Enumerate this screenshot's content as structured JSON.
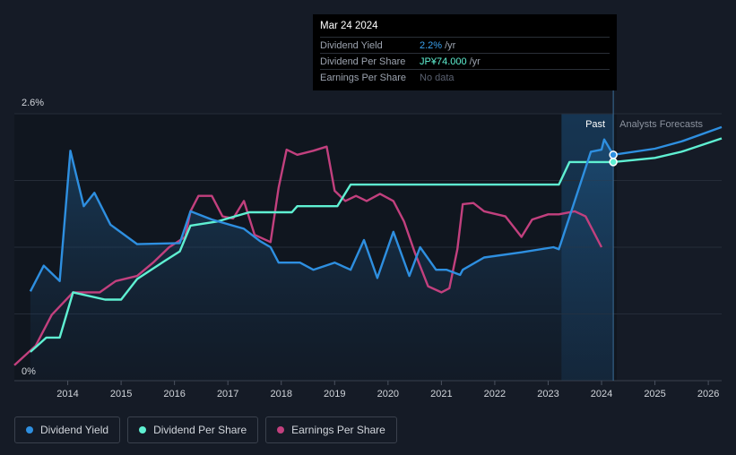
{
  "chart_data": {
    "type": "line",
    "y_axis": {
      "top_label": "2.6%",
      "bottom_label": "0%",
      "min": 0,
      "max": 2.6
    },
    "x_ticks": [
      "2014",
      "2015",
      "2016",
      "2017",
      "2018",
      "2019",
      "2020",
      "2021",
      "2022",
      "2023",
      "2024",
      "2025",
      "2026"
    ],
    "region_labels": {
      "past": "Past",
      "forecast": "Analysts Forecasts"
    },
    "series": [
      {
        "name": "Dividend Yield",
        "color": "#2e8fe0",
        "unit": "%",
        "points": [
          [
            2013.3,
            0.87
          ],
          [
            2013.55,
            1.12
          ],
          [
            2013.85,
            0.97
          ],
          [
            2014.05,
            2.24
          ],
          [
            2014.3,
            1.7
          ],
          [
            2014.5,
            1.83
          ],
          [
            2014.8,
            1.52
          ],
          [
            2015.3,
            1.33
          ],
          [
            2016.1,
            1.34
          ],
          [
            2016.3,
            1.65
          ],
          [
            2016.7,
            1.57
          ],
          [
            2017.3,
            1.48
          ],
          [
            2017.6,
            1.36
          ],
          [
            2017.8,
            1.3
          ],
          [
            2017.95,
            1.15
          ],
          [
            2018.35,
            1.15
          ],
          [
            2018.6,
            1.08
          ],
          [
            2019.0,
            1.15
          ],
          [
            2019.3,
            1.08
          ],
          [
            2019.55,
            1.37
          ],
          [
            2019.8,
            1.0
          ],
          [
            2020.1,
            1.45
          ],
          [
            2020.4,
            1.02
          ],
          [
            2020.6,
            1.3
          ],
          [
            2020.9,
            1.08
          ],
          [
            2021.1,
            1.08
          ],
          [
            2021.35,
            1.03
          ],
          [
            2021.4,
            1.08
          ],
          [
            2021.8,
            1.2
          ],
          [
            2022.5,
            1.25
          ],
          [
            2023.1,
            1.3
          ],
          [
            2023.2,
            1.28
          ],
          [
            2023.8,
            2.23
          ],
          [
            2024.0,
            2.25
          ],
          [
            2024.05,
            2.35
          ],
          [
            2024.22,
            2.2
          ]
        ]
      },
      {
        "name": "Dividend Per Share",
        "color": "#5ff0d2",
        "unit": "JP¥",
        "points": [
          [
            2013.3,
            0.28
          ],
          [
            2013.6,
            0.42
          ],
          [
            2013.85,
            0.42
          ],
          [
            2014.1,
            0.86
          ],
          [
            2014.7,
            0.79
          ],
          [
            2015.0,
            0.79
          ],
          [
            2015.3,
            0.99
          ],
          [
            2015.8,
            1.16
          ],
          [
            2016.1,
            1.26
          ],
          [
            2016.3,
            1.51
          ],
          [
            2016.8,
            1.55
          ],
          [
            2017.4,
            1.64
          ],
          [
            2018.2,
            1.64
          ],
          [
            2018.3,
            1.7
          ],
          [
            2019.05,
            1.7
          ],
          [
            2019.3,
            1.91
          ],
          [
            2023.2,
            1.91
          ],
          [
            2023.4,
            2.13
          ],
          [
            2024.22,
            2.13
          ]
        ]
      },
      {
        "name": "Earnings Per Share",
        "color": "#c2407e",
        "unit": "JP¥",
        "points": [
          [
            2013.0,
            0.15
          ],
          [
            2013.4,
            0.34
          ],
          [
            2013.7,
            0.64
          ],
          [
            2014.1,
            0.86
          ],
          [
            2014.6,
            0.86
          ],
          [
            2014.9,
            0.97
          ],
          [
            2015.3,
            1.02
          ],
          [
            2015.6,
            1.15
          ],
          [
            2015.9,
            1.3
          ],
          [
            2016.2,
            1.4
          ],
          [
            2016.3,
            1.65
          ],
          [
            2016.45,
            1.8
          ],
          [
            2016.7,
            1.8
          ],
          [
            2016.9,
            1.6
          ],
          [
            2017.1,
            1.58
          ],
          [
            2017.3,
            1.75
          ],
          [
            2017.5,
            1.42
          ],
          [
            2017.8,
            1.35
          ],
          [
            2017.95,
            1.88
          ],
          [
            2018.1,
            2.25
          ],
          [
            2018.3,
            2.2
          ],
          [
            2018.6,
            2.24
          ],
          [
            2018.85,
            2.28
          ],
          [
            2019.0,
            1.85
          ],
          [
            2019.2,
            1.75
          ],
          [
            2019.4,
            1.8
          ],
          [
            2019.6,
            1.75
          ],
          [
            2019.85,
            1.82
          ],
          [
            2020.1,
            1.75
          ],
          [
            2020.3,
            1.55
          ],
          [
            2020.5,
            1.25
          ],
          [
            2020.75,
            0.92
          ],
          [
            2021.0,
            0.86
          ],
          [
            2021.15,
            0.9
          ],
          [
            2021.3,
            1.28
          ],
          [
            2021.4,
            1.72
          ],
          [
            2021.6,
            1.73
          ],
          [
            2021.8,
            1.65
          ],
          [
            2022.2,
            1.6
          ],
          [
            2022.5,
            1.4
          ],
          [
            2022.7,
            1.57
          ],
          [
            2023.0,
            1.62
          ],
          [
            2023.2,
            1.62
          ],
          [
            2023.5,
            1.65
          ],
          [
            2023.7,
            1.6
          ],
          [
            2024.0,
            1.3
          ]
        ]
      }
    ],
    "forecast": [
      {
        "series": "Dividend Yield",
        "points": [
          [
            2024.22,
            2.2
          ],
          [
            2025.0,
            2.26
          ],
          [
            2025.5,
            2.33
          ],
          [
            2026.25,
            2.47
          ]
        ]
      },
      {
        "series": "Dividend Per Share",
        "points": [
          [
            2024.22,
            2.13
          ],
          [
            2025.0,
            2.17
          ],
          [
            2025.5,
            2.23
          ],
          [
            2026.25,
            2.36
          ]
        ]
      }
    ],
    "x_range": [
      2013,
      2026.25
    ],
    "past_region": [
      2023.25,
      2024.22
    ],
    "grid": true
  },
  "tooltip": {
    "date": "Mar 24 2024",
    "rows": [
      {
        "label": "Dividend Yield",
        "value": "2.2%",
        "unit": "/yr"
      },
      {
        "label": "Dividend Per Share",
        "value": "JP¥74.000",
        "unit": "/yr"
      },
      {
        "label": "Earnings Per Share",
        "value": "No data",
        "unit": ""
      }
    ]
  },
  "legend": [
    {
      "label": "Dividend Yield",
      "color": "#2e8fe0"
    },
    {
      "label": "Dividend Per Share",
      "color": "#5ff0d2"
    },
    {
      "label": "Earnings Per Share",
      "color": "#c2407e"
    }
  ]
}
